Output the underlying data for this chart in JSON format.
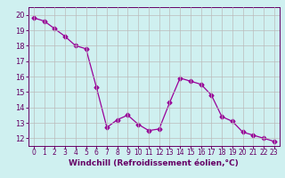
{
  "x": [
    0,
    1,
    2,
    3,
    4,
    5,
    6,
    7,
    8,
    9,
    10,
    11,
    12,
    13,
    14,
    15,
    16,
    17,
    18,
    19,
    20,
    21,
    22,
    23
  ],
  "y": [
    19.8,
    19.6,
    19.1,
    18.6,
    18.0,
    17.8,
    15.3,
    12.7,
    13.2,
    13.5,
    12.9,
    12.5,
    12.6,
    14.3,
    15.9,
    15.7,
    15.5,
    14.8,
    13.4,
    13.1,
    12.4,
    12.2,
    12.0,
    11.8
  ],
  "xlabel": "Windchill (Refroidissement éolien,°C)",
  "xlim": [
    -0.5,
    23.5
  ],
  "ylim": [
    11.5,
    20.5
  ],
  "yticks": [
    12,
    13,
    14,
    15,
    16,
    17,
    18,
    19,
    20
  ],
  "xticks": [
    0,
    1,
    2,
    3,
    4,
    5,
    6,
    7,
    8,
    9,
    10,
    11,
    12,
    13,
    14,
    15,
    16,
    17,
    18,
    19,
    20,
    21,
    22,
    23
  ],
  "line_color": "#990099",
  "marker": "D",
  "marker_size": 2.5,
  "bg_color": "#cff0f0",
  "grid_color": "#bbbbbb",
  "axis_color": "#660066",
  "label_color": "#660066",
  "tick_fontsize": 5.5,
  "xlabel_fontsize": 6.5
}
